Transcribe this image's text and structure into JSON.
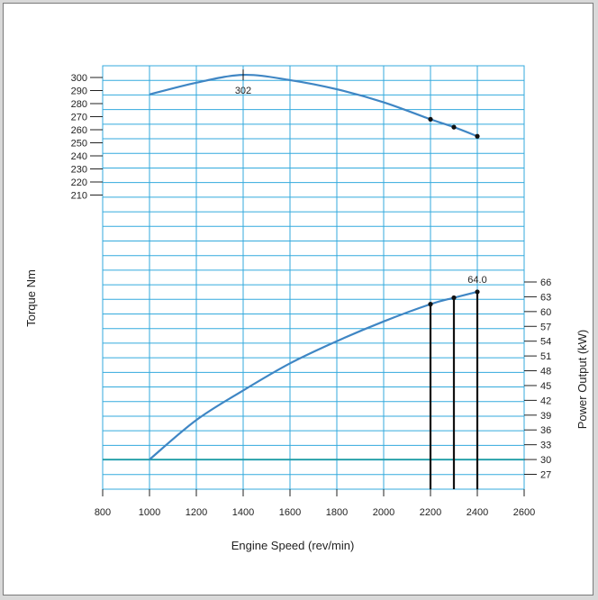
{
  "chart_data": {
    "type": "line",
    "xlabel": "Engine Speed (rev/min)",
    "ylabel_left": "Torque Nm",
    "ylabel_right": "Power Output (kW)",
    "x_ticks": [
      800,
      1000,
      1200,
      1400,
      1600,
      1800,
      2000,
      2200,
      2400,
      2600
    ],
    "xlim": [
      800,
      2600
    ],
    "torque_ticks": [
      210,
      220,
      230,
      240,
      250,
      260,
      270,
      280,
      290,
      300
    ],
    "power_ticks": [
      27,
      30,
      33,
      36,
      39,
      42,
      45,
      48,
      51,
      54,
      57,
      60,
      63,
      66
    ],
    "grid": true,
    "series": [
      {
        "name": "Torque Nm",
        "axis": "left",
        "x": [
          1000,
          1200,
          1400,
          1600,
          1800,
          2000,
          2200,
          2300,
          2400
        ],
        "values": [
          287,
          296,
          302,
          298,
          291,
          281,
          268,
          262,
          255
        ],
        "markers_at": [
          2200,
          2300,
          2400
        ],
        "annotation": {
          "x": 1400,
          "text": "302"
        }
      },
      {
        "name": "Power Output (kW)",
        "axis": "right",
        "x": [
          1000,
          1200,
          1400,
          1600,
          1800,
          2000,
          2200,
          2300,
          2400
        ],
        "values": [
          30,
          38,
          44,
          49.5,
          54,
          58,
          61.5,
          62.8,
          64.0
        ],
        "markers_at": [
          2200,
          2300,
          2400
        ],
        "annotation": {
          "x": 2400,
          "text": "64.0"
        }
      }
    ],
    "reference_line": {
      "axis": "right",
      "value": 30
    },
    "vertical_bars": [
      2200,
      2300,
      2400
    ],
    "colors": {
      "curve": "#3f86c4",
      "grid": "#33aadd",
      "reference": "#1a9aa0",
      "bars": "#111111"
    }
  }
}
